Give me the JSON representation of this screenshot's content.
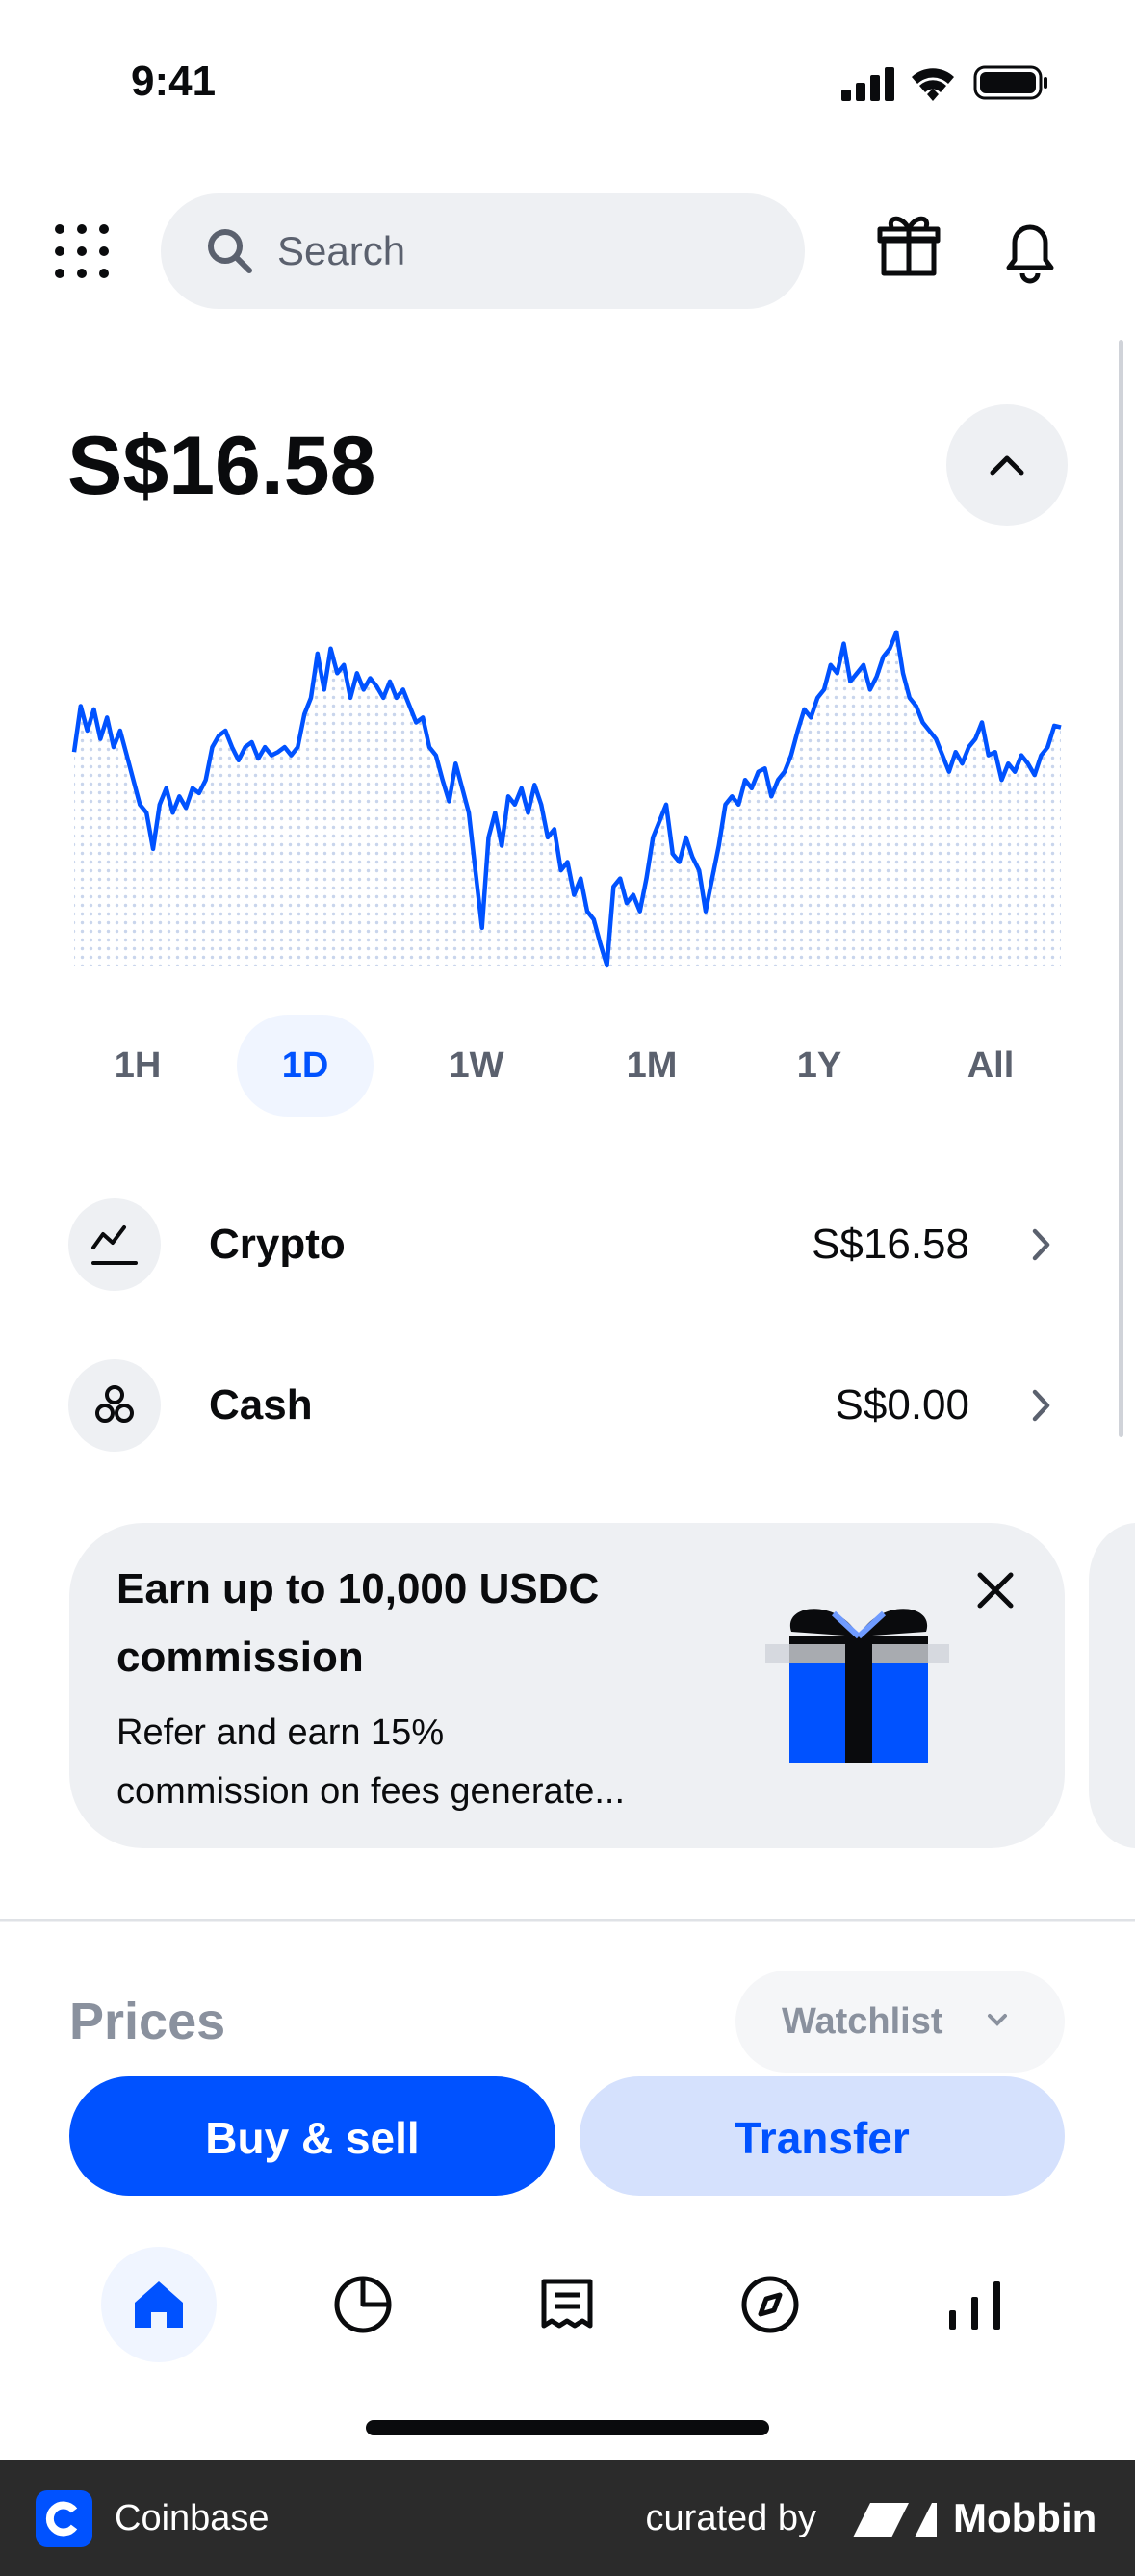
{
  "status": {
    "time": "9:41"
  },
  "search": {
    "placeholder": "Search"
  },
  "balance": "S$16.58",
  "balance_chart": {
    "type": "line",
    "color": "#0052ff",
    "values": [
      130,
      158,
      143,
      156,
      138,
      151,
      133,
      143,
      128,
      113,
      98,
      93,
      71,
      98,
      108,
      93,
      103,
      96,
      108,
      105,
      113,
      133,
      140,
      143,
      133,
      125,
      133,
      136,
      126,
      133,
      128,
      130,
      133,
      128,
      133,
      153,
      163,
      190,
      168,
      193,
      178,
      183,
      163,
      178,
      168,
      175,
      170,
      163,
      173,
      163,
      168,
      158,
      148,
      151,
      133,
      128,
      113,
      100,
      123,
      108,
      93,
      58,
      23,
      78,
      93,
      73,
      103,
      98,
      108,
      93,
      110,
      98,
      78,
      83,
      58,
      63,
      43,
      53,
      33,
      28,
      13,
      0,
      48,
      53,
      38,
      43,
      33,
      53,
      78,
      88,
      98,
      68,
      63,
      78,
      66,
      58,
      33,
      53,
      73,
      98,
      103,
      98,
      113,
      108,
      118,
      120,
      103,
      113,
      118,
      128,
      143,
      156,
      151,
      163,
      168,
      183,
      178,
      196,
      173,
      178,
      183,
      168,
      176,
      188,
      193,
      203,
      178,
      163,
      158,
      148,
      143,
      138,
      128,
      118,
      130,
      123,
      133,
      138,
      148,
      128,
      130,
      113,
      123,
      118,
      128,
      123,
      116,
      128,
      133,
      146,
      145
    ]
  },
  "time_ranges": [
    "1H",
    "1D",
    "1W",
    "1M",
    "1Y",
    "All"
  ],
  "selected_range": 1,
  "accounts": [
    {
      "label": "Crypto",
      "value": "S$16.58"
    },
    {
      "label": "Cash",
      "value": "S$0.00"
    }
  ],
  "promo": {
    "title": [
      "Earn up to 10,000 USDC",
      "commission"
    ],
    "body": [
      "Refer and earn 15%",
      "commission on fees generate..."
    ]
  },
  "prices": {
    "title": "Prices",
    "filter": "Watchlist"
  },
  "actions": [
    "Buy & sell",
    "Transfer"
  ],
  "footer": {
    "app": "Coinbase",
    "curated": "curated by",
    "brand": "Mobbin"
  }
}
